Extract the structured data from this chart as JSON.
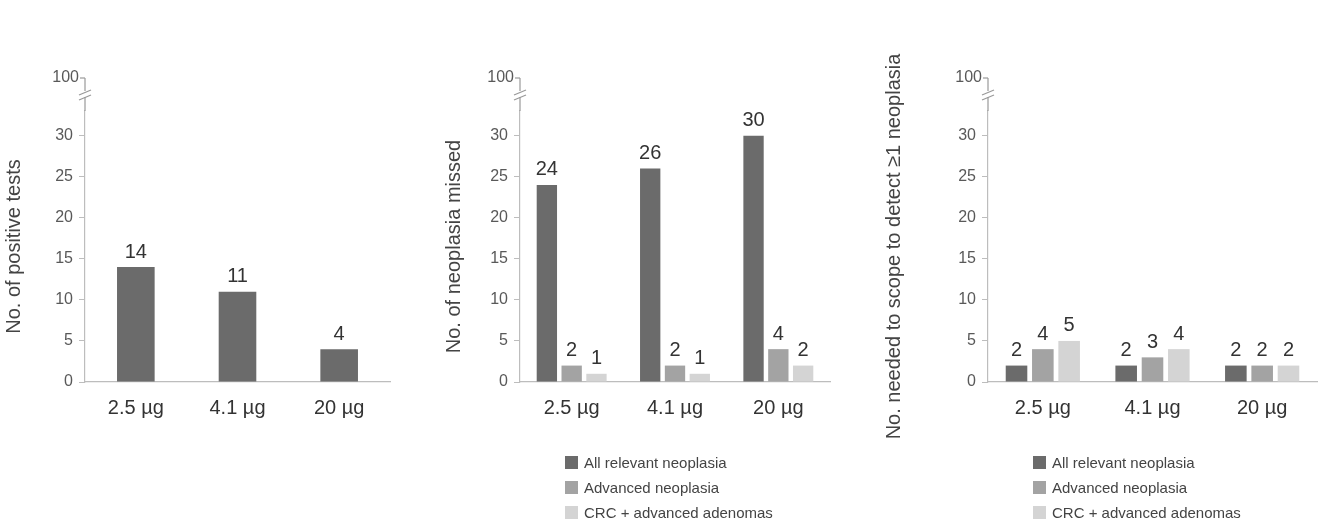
{
  "chart_data": [
    {
      "type": "bar",
      "ylabel": "No. of positive tests",
      "categories": [
        "2.5 µg",
        "4.1 µg",
        "20 µg"
      ],
      "values": [
        14,
        11,
        4
      ],
      "color": "#6b6b6b",
      "ylim": [
        0,
        33
      ],
      "yticks": [
        0,
        5,
        10,
        15,
        20,
        25,
        30
      ],
      "data_labels": true,
      "grid": false,
      "legend": false,
      "annotations": [
        "100"
      ]
    },
    {
      "type": "bar",
      "ylabel": "No. of neoplasia missed",
      "categories": [
        "2.5 µg",
        "4.1 µg",
        "20 µg"
      ],
      "series": [
        {
          "name": "All relevant neoplasia",
          "color": "#6b6b6b",
          "values": [
            24,
            26,
            30
          ]
        },
        {
          "name": "Advanced neoplasia",
          "color": "#a3a3a3",
          "values": [
            2,
            2,
            4
          ]
        },
        {
          "name": "CRC + advanced adenomas",
          "color": "#d4d4d4",
          "values": [
            1,
            1,
            2
          ]
        }
      ],
      "ylim": [
        0,
        33
      ],
      "yticks": [
        0,
        5,
        10,
        15,
        20,
        25,
        30
      ],
      "data_labels": true,
      "grid": false,
      "legend": "bottom",
      "annotations": [
        "100"
      ]
    },
    {
      "type": "bar",
      "ylabel": "No. needed to scope to detect ≥1 neoplasia",
      "categories": [
        "2.5 µg",
        "4.1 µg",
        "20 µg"
      ],
      "series": [
        {
          "name": "All relevant neoplasia",
          "color": "#6b6b6b",
          "values": [
            2,
            2,
            2
          ]
        },
        {
          "name": "Advanced neoplasia",
          "color": "#a3a3a3",
          "values": [
            4,
            3,
            2
          ]
        },
        {
          "name": "CRC + advanced adenomas",
          "color": "#d4d4d4",
          "values": [
            5,
            4,
            2
          ]
        }
      ],
      "ylim": [
        0,
        33
      ],
      "yticks": [
        0,
        5,
        10,
        15,
        20,
        25,
        30
      ],
      "data_labels": true,
      "grid": false,
      "legend": "bottom",
      "annotations": [
        "100"
      ]
    }
  ]
}
